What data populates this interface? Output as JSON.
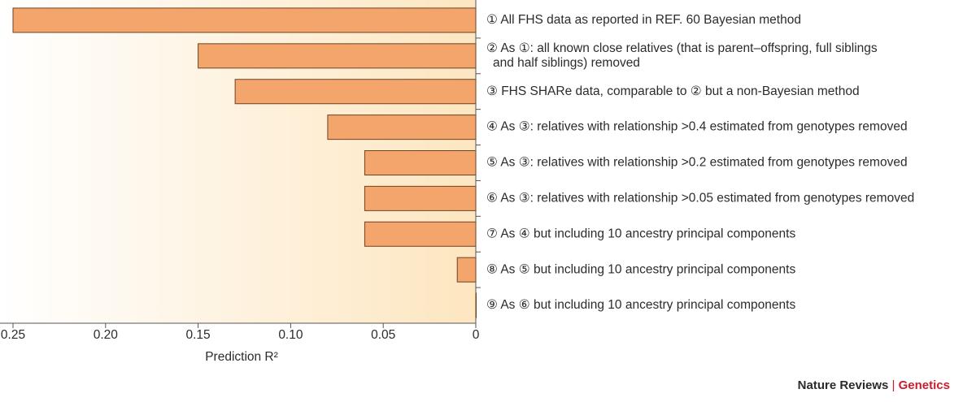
{
  "chart_data": {
    "type": "bar",
    "orientation": "horizontal",
    "categories": [
      "① All FHS data as reported in REF. 60 Bayesian method",
      "② As ①: all known close relatives (that is parent–offspring, full siblings\nand half siblings) removed",
      "③ FHS SHARe data, comparable to ② but a non-Bayesian method",
      "④ As ③: relatives with relationship >0.4 estimated from genotypes removed",
      "⑤ As ③: relatives with relationship >0.2 estimated from genotypes removed",
      "⑥ As ③: relatives with relationship >0.05 estimated from genotypes removed",
      "⑦ As ④ but including 10 ancestry principal components",
      "⑧ As ⑤ but including 10 ancestry principal components",
      "⑨ As ⑥ but including 10 ancestry principal components"
    ],
    "values": [
      0.25,
      0.15,
      0.13,
      0.08,
      0.06,
      0.06,
      0.06,
      0.01,
      0
    ],
    "color": "#f3a56b",
    "x_label": "Prediction R²",
    "xlim": [
      0.25,
      0
    ],
    "xticks": [
      0.25,
      {
        "value": 0.2,
        "label": "0.20"
      },
      0.15,
      {
        "value": 0.1,
        "label": "0.10"
      },
      0.05,
      0
    ]
  },
  "footer": {
    "publisher": "Nature Reviews",
    "separator": "|",
    "journal": "Genetics"
  }
}
